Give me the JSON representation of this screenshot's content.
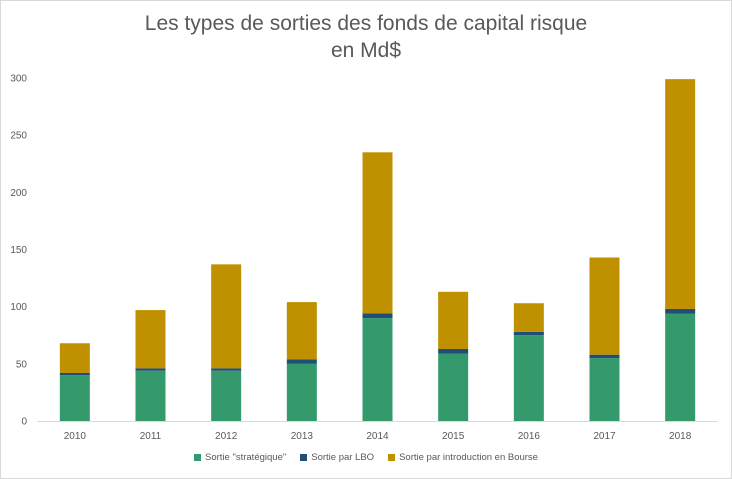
{
  "chart_data": {
    "type": "bar",
    "stacked": true,
    "title_line1": "Les types de sorties des fonds de capital risque",
    "title_line2": "en Md$",
    "categories": [
      "2010",
      "2011",
      "2012",
      "2013",
      "2014",
      "2015",
      "2016",
      "2017",
      "2018"
    ],
    "series": [
      {
        "name": "Sortie \"stratégique\"",
        "color": "#359a6b",
        "values": [
          40,
          44,
          44,
          50,
          90,
          59,
          75,
          55,
          94
        ]
      },
      {
        "name": "Sortie par LBO",
        "color": "#1f4e79",
        "values": [
          2,
          2,
          2,
          4,
          4,
          4,
          3,
          3,
          4
        ]
      },
      {
        "name": "Sortie par introduction en Bourse",
        "color": "#bf9000",
        "values": [
          26,
          51,
          91,
          50,
          141,
          50,
          25,
          85,
          201
        ]
      }
    ],
    "yticks": [
      0,
      50,
      100,
      150,
      200,
      250,
      300
    ],
    "ylim": [
      0,
      300
    ],
    "grid": false,
    "legend_position": "bottom"
  }
}
